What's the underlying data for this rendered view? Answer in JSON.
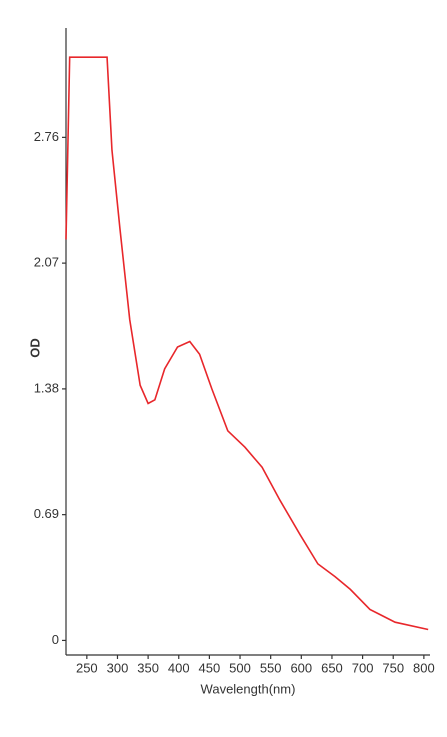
{
  "chart_data": {
    "type": "line",
    "x_label": "Wavelength(nm)",
    "y_label": "OD",
    "x": [
      216,
      222,
      250,
      283,
      291,
      304,
      320,
      337,
      350,
      361,
      377,
      398,
      418,
      434,
      454,
      480,
      508,
      536,
      565,
      598,
      627,
      655,
      680,
      712,
      753,
      807
    ],
    "series": [
      {
        "name": "OD",
        "color": "#e8272b",
        "values": [
          2.2,
          3.2,
          3.2,
          3.2,
          2.69,
          2.26,
          1.76,
          1.4,
          1.3,
          1.32,
          1.49,
          1.61,
          1.64,
          1.57,
          1.38,
          1.15,
          1.06,
          0.95,
          0.77,
          0.58,
          0.42,
          0.35,
          0.28,
          0.17,
          0.1,
          0.06
        ]
      }
    ],
    "xlim": [
      216,
      810
    ],
    "ylim": [
      -0.08,
      3.36
    ],
    "xticks": [
      250,
      300,
      350,
      400,
      450,
      500,
      550,
      600,
      650,
      700,
      750,
      800
    ],
    "yticks": [
      0,
      0.69,
      1.38,
      2.07,
      2.76
    ]
  }
}
